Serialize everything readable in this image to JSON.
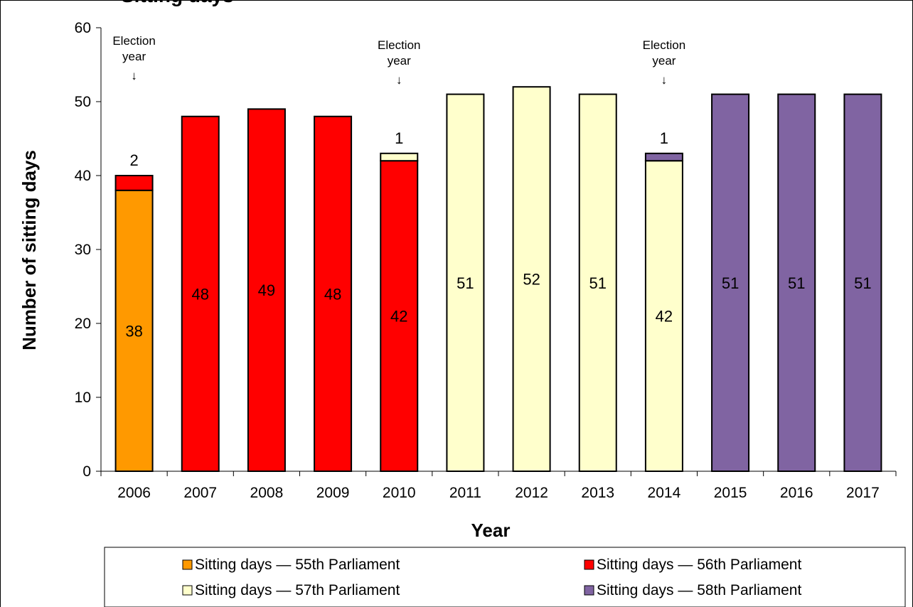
{
  "chart_data": {
    "type": "bar",
    "stacked": true,
    "title": "Sitting days",
    "xlabel": "Year",
    "ylabel": "Number of sitting days",
    "ylim": [
      0,
      60
    ],
    "yticks": [
      0,
      10,
      20,
      30,
      40,
      50,
      60
    ],
    "grid": false,
    "categories": [
      "2006",
      "2007",
      "2008",
      "2009",
      "2010",
      "2011",
      "2012",
      "2013",
      "2014",
      "2015",
      "2016",
      "2017"
    ],
    "series": [
      {
        "name": "Sitting days — 55th Parliament",
        "color": "#FF9900",
        "values": [
          38,
          0,
          0,
          0,
          0,
          0,
          0,
          0,
          0,
          0,
          0,
          0
        ]
      },
      {
        "name": "Sitting days — 56th Parliament",
        "color": "#FF0000",
        "values": [
          2,
          48,
          49,
          48,
          42,
          0,
          0,
          0,
          0,
          0,
          0,
          0
        ]
      },
      {
        "name": "Sitting days — 57th Parliament",
        "color": "#FFFFCC",
        "values": [
          0,
          0,
          0,
          0,
          1,
          51,
          52,
          51,
          42,
          0,
          0,
          0
        ]
      },
      {
        "name": "Sitting days — 58th Parliament",
        "color": "#8064A2",
        "values": [
          0,
          0,
          0,
          0,
          0,
          0,
          0,
          0,
          1,
          51,
          51,
          51
        ]
      }
    ],
    "annotations": [
      {
        "category": "2006",
        "line1": "Election",
        "line2": "year",
        "arrow": "↓"
      },
      {
        "category": "2010",
        "line1": "Election",
        "line2": "year",
        "arrow": "↓"
      },
      {
        "category": "2014",
        "line1": "Election",
        "line2": "year",
        "arrow": "↓"
      }
    ],
    "legend_position": "bottom"
  }
}
